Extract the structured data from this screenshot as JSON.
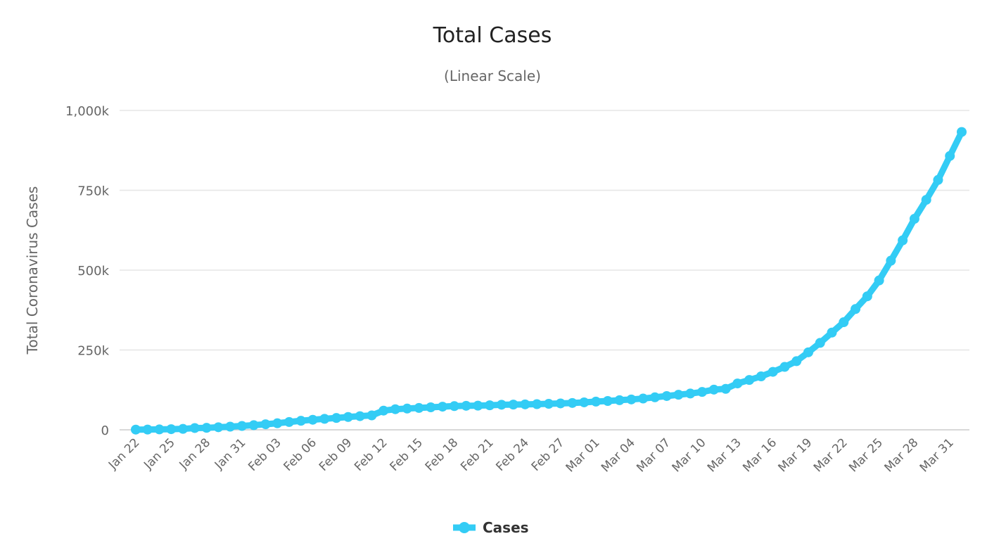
{
  "chart_data": {
    "type": "line",
    "title": "Total Cases",
    "subtitle": "(Linear Scale)",
    "xlabel": "",
    "ylabel": "Total Coronavirus Cases",
    "ylim": [
      0,
      1000000
    ],
    "grid": true,
    "legend_position": "bottom-center",
    "y_ticks": [
      {
        "value": 0,
        "label": "0"
      },
      {
        "value": 250000,
        "label": "250k"
      },
      {
        "value": 500000,
        "label": "500k"
      },
      {
        "value": 750000,
        "label": "750k"
      },
      {
        "value": 1000000,
        "label": "1,000k"
      }
    ],
    "x_tick_labels": [
      "Jan 22",
      "Jan 25",
      "Jan 28",
      "Jan 31",
      "Feb 03",
      "Feb 06",
      "Feb 09",
      "Feb 12",
      "Feb 15",
      "Feb 18",
      "Feb 21",
      "Feb 24",
      "Feb 27",
      "Mar 01",
      "Mar 04",
      "Mar 07",
      "Mar 10",
      "Mar 13",
      "Mar 16",
      "Mar 19",
      "Mar 22",
      "Mar 25",
      "Mar 28",
      "Mar 31"
    ],
    "x_tick_every": 3,
    "x": [
      "Jan 22",
      "Jan 23",
      "Jan 24",
      "Jan 25",
      "Jan 26",
      "Jan 27",
      "Jan 28",
      "Jan 29",
      "Jan 30",
      "Jan 31",
      "Feb 01",
      "Feb 02",
      "Feb 03",
      "Feb 04",
      "Feb 05",
      "Feb 06",
      "Feb 07",
      "Feb 08",
      "Feb 09",
      "Feb 10",
      "Feb 11",
      "Feb 12",
      "Feb 13",
      "Feb 14",
      "Feb 15",
      "Feb 16",
      "Feb 17",
      "Feb 18",
      "Feb 19",
      "Feb 20",
      "Feb 21",
      "Feb 22",
      "Feb 23",
      "Feb 24",
      "Feb 25",
      "Feb 26",
      "Feb 27",
      "Feb 28",
      "Feb 29",
      "Mar 01",
      "Mar 02",
      "Mar 03",
      "Mar 04",
      "Mar 05",
      "Mar 06",
      "Mar 07",
      "Mar 08",
      "Mar 09",
      "Mar 10",
      "Mar 11",
      "Mar 12",
      "Mar 13",
      "Mar 14",
      "Mar 15",
      "Mar 16",
      "Mar 17",
      "Mar 18",
      "Mar 19",
      "Mar 20",
      "Mar 21",
      "Mar 22",
      "Mar 23",
      "Mar 24",
      "Mar 25",
      "Mar 26",
      "Mar 27",
      "Mar 28",
      "Mar 29",
      "Mar 30",
      "Mar 31",
      "Apr 01"
    ],
    "series": [
      {
        "name": "Cases",
        "color": "#33ccf5",
        "values": [
          580,
          850,
          1300,
          2000,
          2900,
          5600,
          6200,
          8100,
          9900,
          12000,
          14600,
          17400,
          20600,
          24500,
          28300,
          31500,
          34400,
          37100,
          40200,
          42800,
          45100,
          60100,
          64500,
          66600,
          68500,
          70500,
          72500,
          74300,
          75200,
          75700,
          76800,
          78600,
          79000,
          79600,
          80400,
          81400,
          82700,
          84100,
          86000,
          88400,
          90300,
          92800,
          95100,
          97900,
          101800,
          105800,
          109800,
          113600,
          118600,
          125900,
          128300,
          145200,
          156100,
          167400,
          181500,
          197100,
          214900,
          242700,
          272200,
          304500,
          336900,
          378200,
          418000,
          467700,
          529600,
          593300,
          660700,
          720100,
          782400,
          857500,
          932600
        ]
      }
    ]
  },
  "colors": {
    "series": "#33ccf5",
    "grid": "#e6e6e6",
    "axis_line": "#cccccc"
  }
}
